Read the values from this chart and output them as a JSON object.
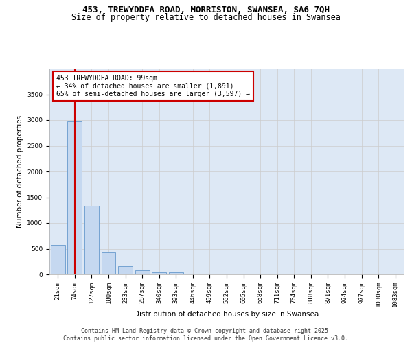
{
  "title_line1": "453, TREWYDDFA ROAD, MORRISTON, SWANSEA, SA6 7QH",
  "title_line2": "Size of property relative to detached houses in Swansea",
  "xlabel": "Distribution of detached houses by size in Swansea",
  "ylabel": "Number of detached properties",
  "categories": [
    "21sqm",
    "74sqm",
    "127sqm",
    "180sqm",
    "233sqm",
    "287sqm",
    "340sqm",
    "393sqm",
    "446sqm",
    "499sqm",
    "552sqm",
    "605sqm",
    "658sqm",
    "711sqm",
    "764sqm",
    "818sqm",
    "871sqm",
    "924sqm",
    "977sqm",
    "1030sqm",
    "1083sqm"
  ],
  "values": [
    580,
    2970,
    1340,
    430,
    155,
    75,
    45,
    40,
    0,
    0,
    0,
    0,
    0,
    0,
    0,
    0,
    0,
    0,
    0,
    0,
    0
  ],
  "bar_color": "#c5d8f0",
  "bar_edge_color": "#6699cc",
  "grid_color": "#cccccc",
  "background_color": "#dde8f5",
  "annotation_box_text": "453 TREWYDDFA ROAD: 99sqm\n← 34% of detached houses are smaller (1,891)\n65% of semi-detached houses are larger (3,597) →",
  "annotation_box_color": "#ffffff",
  "annotation_box_edge_color": "#cc0000",
  "vline_x": 1,
  "vline_color": "#cc0000",
  "ylim": [
    0,
    4000
  ],
  "yticks": [
    0,
    500,
    1000,
    1500,
    2000,
    2500,
    3000,
    3500
  ],
  "footer_line1": "Contains HM Land Registry data © Crown copyright and database right 2025.",
  "footer_line2": "Contains public sector information licensed under the Open Government Licence v3.0.",
  "title_fontsize": 9,
  "subtitle_fontsize": 8.5,
  "axis_label_fontsize": 7.5,
  "tick_fontsize": 6.5,
  "annotation_fontsize": 7,
  "footer_fontsize": 6
}
